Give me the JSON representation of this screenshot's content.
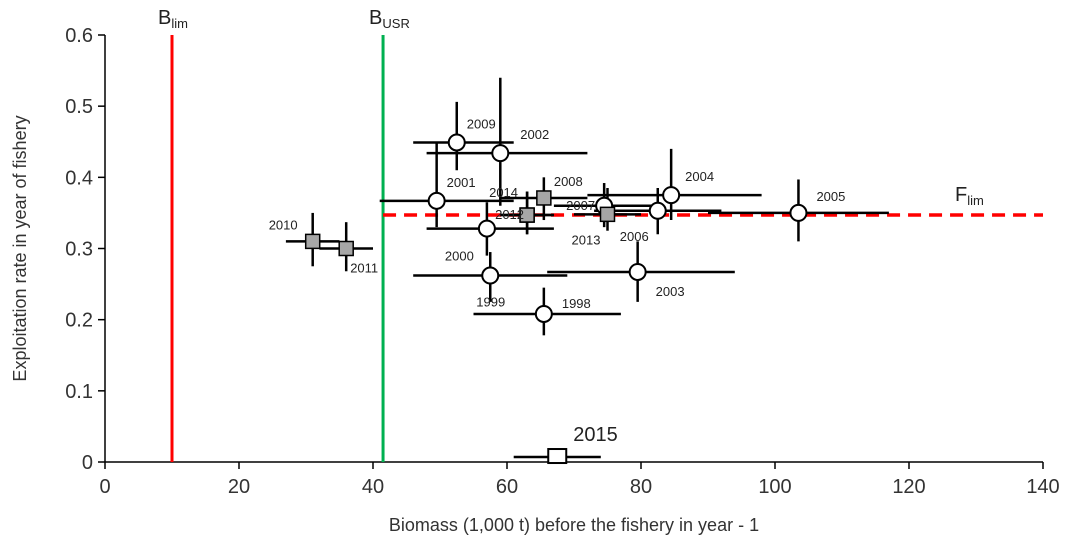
{
  "chart_data": {
    "type": "scatter",
    "xlabel": "Biomass (1,000 t) before the fishery in year - 1",
    "ylabel": "Exploitation rate in year of fishery",
    "xlim": [
      0,
      140
    ],
    "ylim": [
      0,
      0.6
    ],
    "xticks": [
      "0",
      "20",
      "40",
      "60",
      "80",
      "100",
      "120",
      "140"
    ],
    "yticks": [
      "0",
      "0.1",
      "0.2",
      "0.3",
      "0.4",
      "0.5",
      "0.6"
    ],
    "grid": false,
    "reference_lines": [
      {
        "name": "B",
        "sub": "lim",
        "axis": "x",
        "value": 10,
        "color": "#ff0000",
        "style": "solid"
      },
      {
        "name": "B",
        "sub": "USR",
        "axis": "x",
        "value": 41.5,
        "color": "#00b050",
        "style": "solid"
      },
      {
        "name": "F",
        "sub": "lim",
        "axis": "y",
        "value": 0.347,
        "color": "#ff0000",
        "style": "dashed"
      }
    ],
    "series": [
      {
        "marker": "circle-open",
        "points": [
          {
            "label": "1998",
            "x": 65.5,
            "y": 0.208,
            "xerr": [
              55,
              77
            ],
            "yerr": [
              0.178,
              0.245
            ]
          },
          {
            "label": "1999",
            "x": 57.5,
            "y": 0.262,
            "xerr": [
              46,
              69
            ],
            "yerr": [
              0.225,
              0.295
            ]
          },
          {
            "label": "2000",
            "x": 57,
            "y": 0.328,
            "xerr": [
              48,
              67
            ],
            "yerr": [
              0.29,
              0.365
            ]
          },
          {
            "label": "2001",
            "x": 49.5,
            "y": 0.367,
            "xerr": [
              41,
              61
            ],
            "yerr": [
              0.33,
              0.45
            ]
          },
          {
            "label": "2002",
            "x": 59,
            "y": 0.434,
            "xerr": [
              48,
              72
            ],
            "yerr": [
              0.36,
              0.54
            ]
          },
          {
            "label": "2003",
            "x": 79.5,
            "y": 0.267,
            "xerr": [
              66,
              94
            ],
            "yerr": [
              0.225,
              0.31
            ]
          },
          {
            "label": "2004",
            "x": 84.5,
            "y": 0.375,
            "xerr": [
              72,
              98
            ],
            "yerr": [
              0.34,
              0.44
            ]
          },
          {
            "label": "2005",
            "x": 103.5,
            "y": 0.35,
            "xerr": [
              90,
              117
            ],
            "yerr": [
              0.31,
              0.397
            ]
          },
          {
            "label": "2006",
            "x": 82.5,
            "y": 0.353,
            "xerr": [
              73,
              92
            ],
            "yerr": [
              0.32,
              0.385
            ]
          },
          {
            "label": "2007",
            "x": 74.5,
            "y": 0.36,
            "xerr": [
              67,
              82
            ],
            "yerr": [
              0.33,
              0.392
            ]
          },
          {
            "label": "2009",
            "x": 52.5,
            "y": 0.449,
            "xerr": [
              46,
              61
            ],
            "yerr": [
              0.41,
              0.506
            ]
          }
        ]
      },
      {
        "marker": "square-filled",
        "points": [
          {
            "label": "2008",
            "x": 65.5,
            "y": 0.371,
            "xerr": [
              59,
              72
            ],
            "yerr": [
              0.34,
              0.4
            ]
          },
          {
            "label": "2010",
            "x": 31,
            "y": 0.31,
            "xerr": [
              27,
              35
            ],
            "yerr": [
              0.275,
              0.35
            ]
          },
          {
            "label": "2011",
            "x": 36,
            "y": 0.3,
            "xerr": [
              32,
              40
            ],
            "yerr": [
              0.268,
              0.337
            ]
          },
          {
            "label": "2012",
            "x": 63,
            "y": 0.347,
            "xerr": [
              59,
              67
            ],
            "yerr": [
              0.32,
              0.38
            ]
          },
          {
            "label": "2013",
            "x": 75,
            "y": 0.348,
            "xerr": [
              70,
              80
            ],
            "yerr": [
              0.325,
              0.385
            ]
          },
          {
            "label": "2014",
            "x": 63,
            "y": 0.347,
            "xerr": [
              59,
              67
            ],
            "yerr": [
              0.32,
              0.38
            ]
          }
        ]
      },
      {
        "marker": "square-open-large",
        "points": [
          {
            "label": "2015",
            "x": 67.5,
            "y": 0.007,
            "xerr": [
              61,
              74
            ],
            "yerr": [
              0.007,
              0.007
            ]
          }
        ]
      }
    ]
  }
}
